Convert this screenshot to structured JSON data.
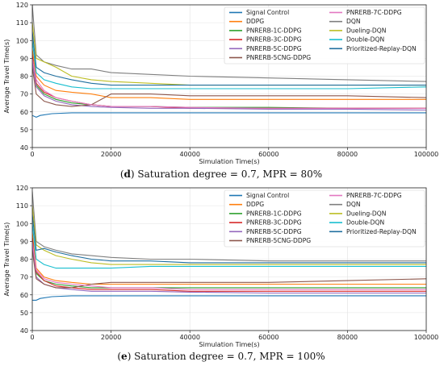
{
  "chart_data": [
    {
      "type": "line",
      "caption_letter": "d",
      "caption_text": " Saturation degree = 0.7, MPR = 80%",
      "xlabel": "Simulation Time(s)",
      "ylabel": "Average Travel Time(s)",
      "xlim": [
        0,
        100000
      ],
      "ylim": [
        40,
        120
      ],
      "xticks": [
        0,
        20000,
        40000,
        60000,
        80000,
        100000
      ],
      "yticks": [
        40,
        50,
        60,
        70,
        80,
        90,
        100,
        110,
        120
      ],
      "grid": true,
      "legend_position": "top-right",
      "series": [
        {
          "name": "Signal Control",
          "color": "#1f77b4",
          "x": [
            0,
            1000,
            2000,
            5000,
            10000,
            20000,
            40000,
            60000,
            80000,
            100000
          ],
          "y": [
            58,
            57,
            58,
            59,
            59.5,
            59.5,
            59.5,
            59.5,
            59.5,
            59.5
          ]
        },
        {
          "name": "DDPG",
          "color": "#ff7f0e",
          "x": [
            0,
            1000,
            3000,
            6000,
            10000,
            15000,
            20000,
            30000,
            40000,
            60000,
            80000,
            100000
          ],
          "y": [
            95,
            80,
            75,
            72,
            71,
            70,
            68,
            68,
            67,
            67,
            67,
            67
          ]
        },
        {
          "name": "PNRERB-1C-DDPG",
          "color": "#2ca02c",
          "x": [
            0,
            1000,
            3000,
            6000,
            10000,
            15000,
            20000,
            30000,
            40000,
            60000,
            80000,
            100000
          ],
          "y": [
            90,
            75,
            70,
            67,
            65,
            64,
            63,
            63,
            62.5,
            62.5,
            62,
            62
          ]
        },
        {
          "name": "PNRERB-3C-DDPG",
          "color": "#d62728",
          "x": [
            0,
            1000,
            3000,
            6000,
            10000,
            15000,
            20000,
            30000,
            40000,
            60000,
            80000,
            100000
          ],
          "y": [
            92,
            76,
            71,
            68,
            66,
            64,
            63,
            63,
            62,
            62,
            62,
            62
          ]
        },
        {
          "name": "PNRERB-5C-DDPG",
          "color": "#9467bd",
          "x": [
            0,
            1000,
            3000,
            6000,
            10000,
            15000,
            20000,
            30000,
            40000,
            60000,
            80000,
            100000
          ],
          "y": [
            88,
            74,
            69,
            66,
            64,
            63,
            62.5,
            62,
            62,
            61.5,
            61.5,
            61
          ]
        },
        {
          "name": "PNRERB-5CNG-DDPG",
          "color": "#8c564b",
          "x": [
            0,
            1000,
            3000,
            6000,
            10000,
            15000,
            20000,
            30000,
            40000,
            60000,
            80000,
            100000
          ],
          "y": [
            85,
            70,
            66,
            64,
            63,
            64,
            70,
            70,
            69,
            69,
            69,
            68
          ]
        },
        {
          "name": "PNRERB-7C-DDPG",
          "color": "#e377c2",
          "x": [
            0,
            1000,
            3000,
            6000,
            10000,
            15000,
            20000,
            30000,
            40000,
            60000,
            80000,
            100000
          ],
          "y": [
            90,
            78,
            72,
            68,
            66,
            64,
            63,
            63,
            62.5,
            62,
            62,
            62
          ]
        },
        {
          "name": "DQN",
          "color": "#7f7f7f",
          "x": [
            0,
            1000,
            3000,
            6000,
            10000,
            15000,
            20000,
            30000,
            40000,
            60000,
            80000,
            100000
          ],
          "y": [
            120,
            92,
            88,
            86,
            84,
            84,
            82,
            81,
            80,
            79,
            78,
            77
          ]
        },
        {
          "name": "Dueling-DQN",
          "color": "#bcbd22",
          "x": [
            0,
            1000,
            3000,
            6000,
            10000,
            15000,
            20000,
            30000,
            40000,
            60000,
            80000,
            100000
          ],
          "y": [
            110,
            90,
            88,
            85,
            80,
            78,
            77,
            76,
            75,
            75,
            75,
            75
          ]
        },
        {
          "name": "Double-DQN",
          "color": "#17becf",
          "x": [
            0,
            1000,
            3000,
            6000,
            10000,
            15000,
            20000,
            30000,
            40000,
            60000,
            80000,
            100000
          ],
          "y": [
            100,
            82,
            78,
            76,
            74,
            73,
            73,
            73,
            73,
            73,
            73,
            74
          ]
        },
        {
          "name": "Prioritized-Replay-DQN",
          "color": "#1f6f9f",
          "x": [
            0,
            1000,
            3000,
            6000,
            10000,
            15000,
            20000,
            30000,
            40000,
            60000,
            80000,
            100000
          ],
          "y": [
            105,
            85,
            82,
            80,
            78,
            76,
            75,
            75,
            75,
            75,
            75,
            75
          ]
        }
      ]
    },
    {
      "type": "line",
      "caption_letter": "e",
      "caption_text": " Saturation degree = 0.7, MPR = 100%",
      "xlabel": "Simulation Time(s)",
      "ylabel": "Average Travel Time(s)",
      "xlim": [
        0,
        100000
      ],
      "ylim": [
        40,
        120
      ],
      "xticks": [
        0,
        20000,
        40000,
        60000,
        80000,
        100000
      ],
      "yticks": [
        40,
        50,
        60,
        70,
        80,
        90,
        100,
        110,
        120
      ],
      "grid": true,
      "legend_position": "top-right",
      "series": [
        {
          "name": "Signal Control",
          "color": "#1f77b4",
          "x": [
            0,
            1000,
            2000,
            5000,
            10000,
            20000,
            40000,
            60000,
            80000,
            100000
          ],
          "y": [
            57,
            57,
            58,
            59,
            59.5,
            59.5,
            59.5,
            59.5,
            59.5,
            59.5
          ]
        },
        {
          "name": "DDPG",
          "color": "#ff7f0e",
          "x": [
            0,
            1000,
            3000,
            6000,
            10000,
            15000,
            20000,
            30000,
            40000,
            60000,
            80000,
            100000
          ],
          "y": [
            95,
            75,
            70,
            68,
            67,
            66,
            66,
            66,
            66,
            66,
            66,
            66
          ]
        },
        {
          "name": "PNRERB-1C-DDPG",
          "color": "#2ca02c",
          "x": [
            0,
            1000,
            3000,
            6000,
            10000,
            15000,
            20000,
            30000,
            40000,
            60000,
            80000,
            100000
          ],
          "y": [
            90,
            72,
            68,
            66,
            65,
            64,
            64,
            64,
            64,
            64,
            64,
            64
          ]
        },
        {
          "name": "PNRERB-3C-DDPG",
          "color": "#d62728",
          "x": [
            0,
            1000,
            3000,
            6000,
            10000,
            15000,
            20000,
            30000,
            40000,
            60000,
            80000,
            100000
          ],
          "y": [
            92,
            73,
            68,
            65,
            64,
            63,
            63,
            63,
            62,
            62,
            62,
            62
          ]
        },
        {
          "name": "PNRERB-5C-DDPG",
          "color": "#9467bd",
          "x": [
            0,
            1000,
            3000,
            6000,
            10000,
            15000,
            20000,
            30000,
            40000,
            60000,
            80000,
            100000
          ],
          "y": [
            88,
            70,
            66,
            64,
            63,
            62,
            62,
            62,
            61.5,
            61,
            61,
            61
          ]
        },
        {
          "name": "PNRERB-5CNG-DDPG",
          "color": "#8c564b",
          "x": [
            0,
            1000,
            3000,
            6000,
            10000,
            15000,
            20000,
            30000,
            40000,
            60000,
            80000,
            100000
          ],
          "y": [
            85,
            69,
            66,
            64,
            64,
            66,
            67,
            67,
            67,
            67,
            68,
            69
          ]
        },
        {
          "name": "PNRERB-7C-DDPG",
          "color": "#e377c2",
          "x": [
            0,
            1000,
            3000,
            6000,
            10000,
            15000,
            20000,
            30000,
            40000,
            60000,
            80000,
            100000
          ],
          "y": [
            90,
            74,
            69,
            67,
            66,
            65,
            64,
            64,
            63,
            63,
            63,
            63
          ]
        },
        {
          "name": "DQN",
          "color": "#7f7f7f",
          "x": [
            0,
            1000,
            3000,
            6000,
            10000,
            15000,
            20000,
            30000,
            40000,
            60000,
            80000,
            100000
          ],
          "y": [
            118,
            90,
            87,
            85,
            83,
            82,
            81,
            80,
            80,
            79,
            79,
            79
          ]
        },
        {
          "name": "Dueling-DQN",
          "color": "#bcbd22",
          "x": [
            0,
            1000,
            3000,
            6000,
            10000,
            15000,
            20000,
            30000,
            40000,
            60000,
            80000,
            100000
          ],
          "y": [
            110,
            88,
            85,
            82,
            80,
            78,
            77,
            77,
            77,
            77,
            77,
            77
          ]
        },
        {
          "name": "Double-DQN",
          "color": "#17becf",
          "x": [
            0,
            1000,
            3000,
            6000,
            10000,
            15000,
            20000,
            30000,
            40000,
            60000,
            80000,
            100000
          ],
          "y": [
            100,
            80,
            77,
            75,
            75,
            75,
            75,
            76,
            76,
            76,
            76,
            76
          ]
        },
        {
          "name": "Prioritized-Replay-DQN",
          "color": "#1f6f9f",
          "x": [
            0,
            1000,
            3000,
            6000,
            10000,
            15000,
            20000,
            30000,
            40000,
            60000,
            80000,
            100000
          ],
          "y": [
            105,
            85,
            86,
            84,
            82,
            80,
            79,
            79,
            78,
            78,
            78,
            78
          ]
        }
      ]
    }
  ]
}
